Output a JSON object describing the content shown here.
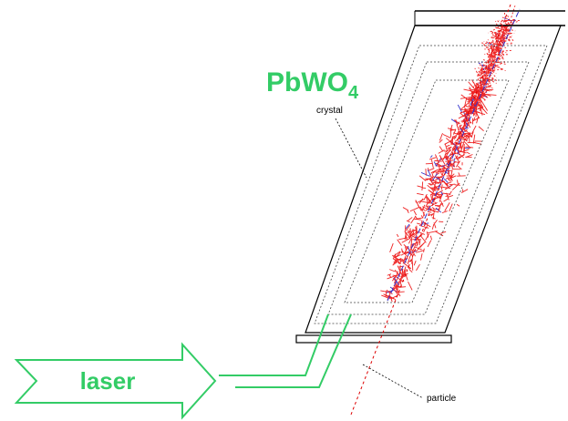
{
  "material": {
    "main": "PbWO",
    "subscript": "4"
  },
  "labels": {
    "crystal": "crystal",
    "laser": "laser",
    "particle": "particle"
  }
}
